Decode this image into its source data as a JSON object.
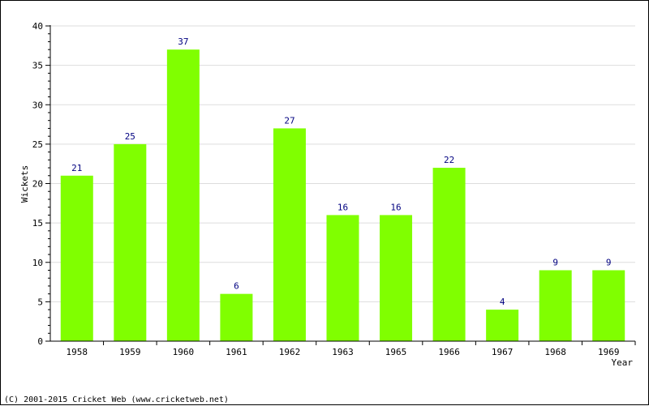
{
  "chart_data": {
    "type": "bar",
    "categories": [
      "1958",
      "1959",
      "1960",
      "1961",
      "1962",
      "1963",
      "1965",
      "1966",
      "1967",
      "1968",
      "1969"
    ],
    "values": [
      21,
      25,
      37,
      6,
      27,
      16,
      16,
      22,
      4,
      9,
      9
    ],
    "xlabel": "Year",
    "ylabel": "Wickets",
    "ylim": [
      0,
      40
    ],
    "yticks": [
      0,
      5,
      10,
      15,
      20,
      25,
      30,
      35,
      40
    ],
    "grid": true,
    "bar_color": "#80ff00",
    "data_label_color": "#000080"
  },
  "footer": {
    "copyright": "(C) 2001-2015 Cricket Web (www.cricketweb.net)"
  }
}
